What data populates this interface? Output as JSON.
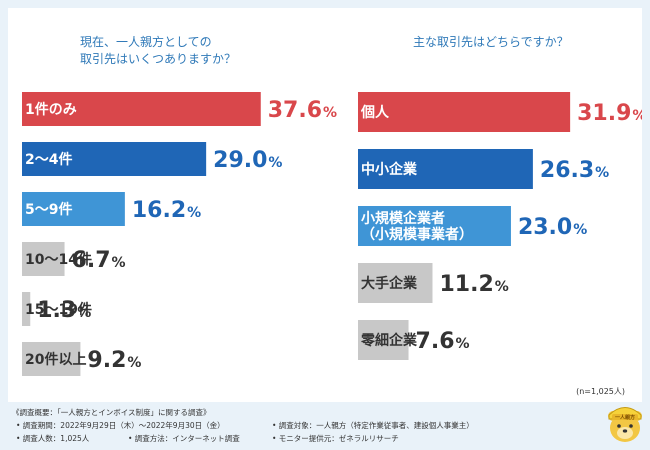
{
  "sample_note": "(n=1,025人)",
  "chart_data": [
    {
      "type": "bar",
      "title_lines": [
        "現在、一人親方としての",
        "取引先はいくつありますか？"
      ],
      "categories": [
        "1件のみ",
        "2〜4件",
        "5〜9件",
        "10〜14件",
        "15〜19件",
        "20件以上"
      ],
      "values": [
        37.6,
        29.0,
        16.2,
        6.7,
        1.3,
        9.2
      ],
      "unit": "%",
      "colors": [
        "#d9474b",
        "#1f66b6",
        "#3f95d6",
        "#c8c8c8",
        "#c8c8c8",
        "#c8c8c8"
      ]
    },
    {
      "type": "bar",
      "title_lines": [
        "主な取引先はどちらですか？"
      ],
      "categories": [
        [
          "個人"
        ],
        [
          "中小企業"
        ],
        [
          "小規模企業者",
          "（小規模事業者）"
        ],
        [
          "大手企業"
        ],
        [
          "零細企業"
        ]
      ],
      "values": [
        31.9,
        26.3,
        23.0,
        11.2,
        7.6
      ],
      "unit": "%",
      "colors": [
        "#d9474b",
        "#1f66b6",
        "#3f95d6",
        "#c8c8c8",
        "#c8c8c8"
      ]
    }
  ],
  "footer": {
    "overview": "《調査概要：「一人親方とインボイス制度」に関する調査》",
    "period": "• 調査期間：2022年9月29日（木）〜2022年9月30日（金）",
    "count": "• 調査人数：1,025人",
    "method": "• 調査方法：インターネット調査",
    "target": "• 調査対象：一人親方（特定作業従事者、建設個人事業主）",
    "provider": "• モニター提供元：ゼネラルリサーチ"
  },
  "mascot": {
    "icon": "mascot-icon",
    "badge": "一人親方"
  }
}
